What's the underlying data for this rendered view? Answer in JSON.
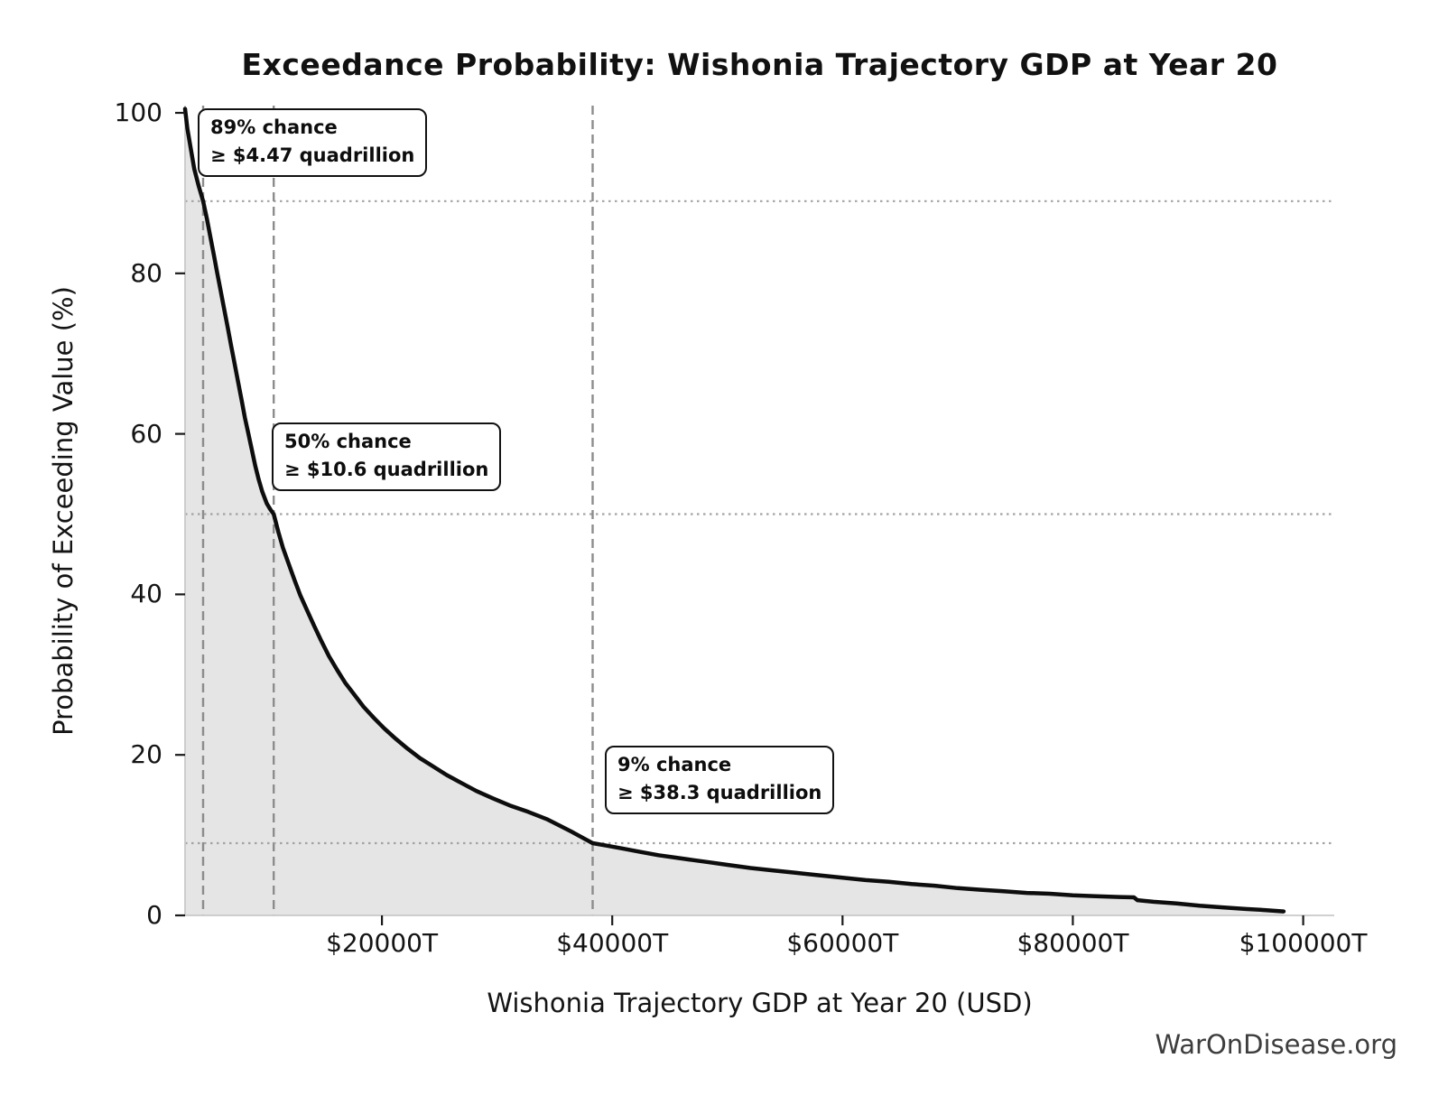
{
  "title": "Exceedance Probability: Wishonia Trajectory GDP at Year 20",
  "watermark": "WarOnDisease.org",
  "chart_data": {
    "type": "line",
    "title": "Exceedance Probability: Wishonia Trajectory GDP at Year 20",
    "xlabel": "Wishonia Trajectory GDP at Year 20 (USD)",
    "ylabel": "Probability of Exceeding Value (%)",
    "x_unit": "trillion USD",
    "xlim": [
      2900,
      102700
    ],
    "ylim": [
      0,
      100.9
    ],
    "x_tick_values": [
      20000,
      40000,
      60000,
      80000,
      100000
    ],
    "x_tick_labels": [
      "$20000T",
      "$40000T",
      "$60000T",
      "$80000T",
      "$100000T"
    ],
    "y_tick_values": [
      0,
      20,
      40,
      60,
      80,
      100
    ],
    "y_tick_labels": [
      "0",
      "20",
      "40",
      "60",
      "80",
      "100"
    ],
    "grid": "off (reference lines only)",
    "legend": "none",
    "fill_under_curve": true,
    "series": [
      {
        "name": "exceedance-probability-curve",
        "points": [
          [
            2900,
            100.5
          ],
          [
            3100,
            98.0
          ],
          [
            3400,
            95.5
          ],
          [
            3700,
            93.0
          ],
          [
            4100,
            90.8
          ],
          [
            4470,
            89.0
          ],
          [
            4800,
            86.8
          ],
          [
            5100,
            84.5
          ],
          [
            5400,
            82.3
          ],
          [
            5700,
            80.0
          ],
          [
            6000,
            77.8
          ],
          [
            6300,
            75.5
          ],
          [
            6600,
            73.3
          ],
          [
            6900,
            71.0
          ],
          [
            7200,
            68.8
          ],
          [
            7500,
            66.5
          ],
          [
            7800,
            64.3
          ],
          [
            8100,
            62.0
          ],
          [
            8400,
            60.0
          ],
          [
            8700,
            58.0
          ],
          [
            9000,
            56.0
          ],
          [
            9300,
            54.3
          ],
          [
            9600,
            52.8
          ],
          [
            10000,
            51.3
          ],
          [
            10300,
            50.6
          ],
          [
            10600,
            50.0
          ],
          [
            11000,
            47.8
          ],
          [
            11400,
            45.8
          ],
          [
            11900,
            43.8
          ],
          [
            12400,
            41.8
          ],
          [
            12900,
            39.9
          ],
          [
            13500,
            38.0
          ],
          [
            14100,
            36.1
          ],
          [
            14700,
            34.3
          ],
          [
            15400,
            32.3
          ],
          [
            16100,
            30.6
          ],
          [
            16800,
            29.0
          ],
          [
            17600,
            27.5
          ],
          [
            18400,
            26.0
          ],
          [
            19300,
            24.6
          ],
          [
            20200,
            23.3
          ],
          [
            21200,
            22.0
          ],
          [
            22200,
            20.8
          ],
          [
            23300,
            19.6
          ],
          [
            24400,
            18.6
          ],
          [
            25600,
            17.5
          ],
          [
            26900,
            16.5
          ],
          [
            28200,
            15.5
          ],
          [
            29600,
            14.6
          ],
          [
            31100,
            13.7
          ],
          [
            32700,
            12.9
          ],
          [
            34300,
            12.0
          ],
          [
            35400,
            11.2
          ],
          [
            36500,
            10.4
          ],
          [
            37400,
            9.7
          ],
          [
            38300,
            9.0
          ],
          [
            39500,
            8.7
          ],
          [
            41000,
            8.3
          ],
          [
            42500,
            7.9
          ],
          [
            44000,
            7.5
          ],
          [
            45500,
            7.2
          ],
          [
            47000,
            6.9
          ],
          [
            48500,
            6.6
          ],
          [
            50000,
            6.3
          ],
          [
            52000,
            5.9
          ],
          [
            54000,
            5.6
          ],
          [
            56000,
            5.3
          ],
          [
            58000,
            5.0
          ],
          [
            60000,
            4.7
          ],
          [
            62000,
            4.4
          ],
          [
            64000,
            4.2
          ],
          [
            66000,
            3.9
          ],
          [
            68000,
            3.7
          ],
          [
            70000,
            3.4
          ],
          [
            72000,
            3.2
          ],
          [
            74000,
            3.0
          ],
          [
            76000,
            2.8
          ],
          [
            78000,
            2.7
          ],
          [
            80000,
            2.5
          ],
          [
            82000,
            2.4
          ],
          [
            84000,
            2.3
          ],
          [
            85300,
            2.25
          ],
          [
            85600,
            1.9
          ],
          [
            87000,
            1.7
          ],
          [
            89000,
            1.5
          ],
          [
            91000,
            1.2
          ],
          [
            93000,
            1.0
          ],
          [
            95000,
            0.8
          ],
          [
            96800,
            0.65
          ],
          [
            98300,
            0.5
          ]
        ]
      }
    ],
    "annotations": [
      {
        "line1": "89% chance",
        "line2": "≥ $4.47 quadrillion",
        "x_value": 4470,
        "probability": 89
      },
      {
        "line1": "50% chance",
        "line2": "≥ $10.6 quadrillion",
        "x_value": 10600,
        "probability": 50
      },
      {
        "line1": "9% chance",
        "line2": "≥ $38.3 quadrillion",
        "x_value": 38300,
        "probability": 9
      }
    ],
    "colors": {
      "curve": "#0d0d0d",
      "area_fill": "#e5e5e5",
      "dashed_reference": "#8c8c8c",
      "dotted_reference": "#a3a3a3",
      "spine": "#c9c9c9",
      "tick": "#1a1a1a",
      "watermark": "#3d3d3d",
      "background": "#ffffff"
    }
  }
}
